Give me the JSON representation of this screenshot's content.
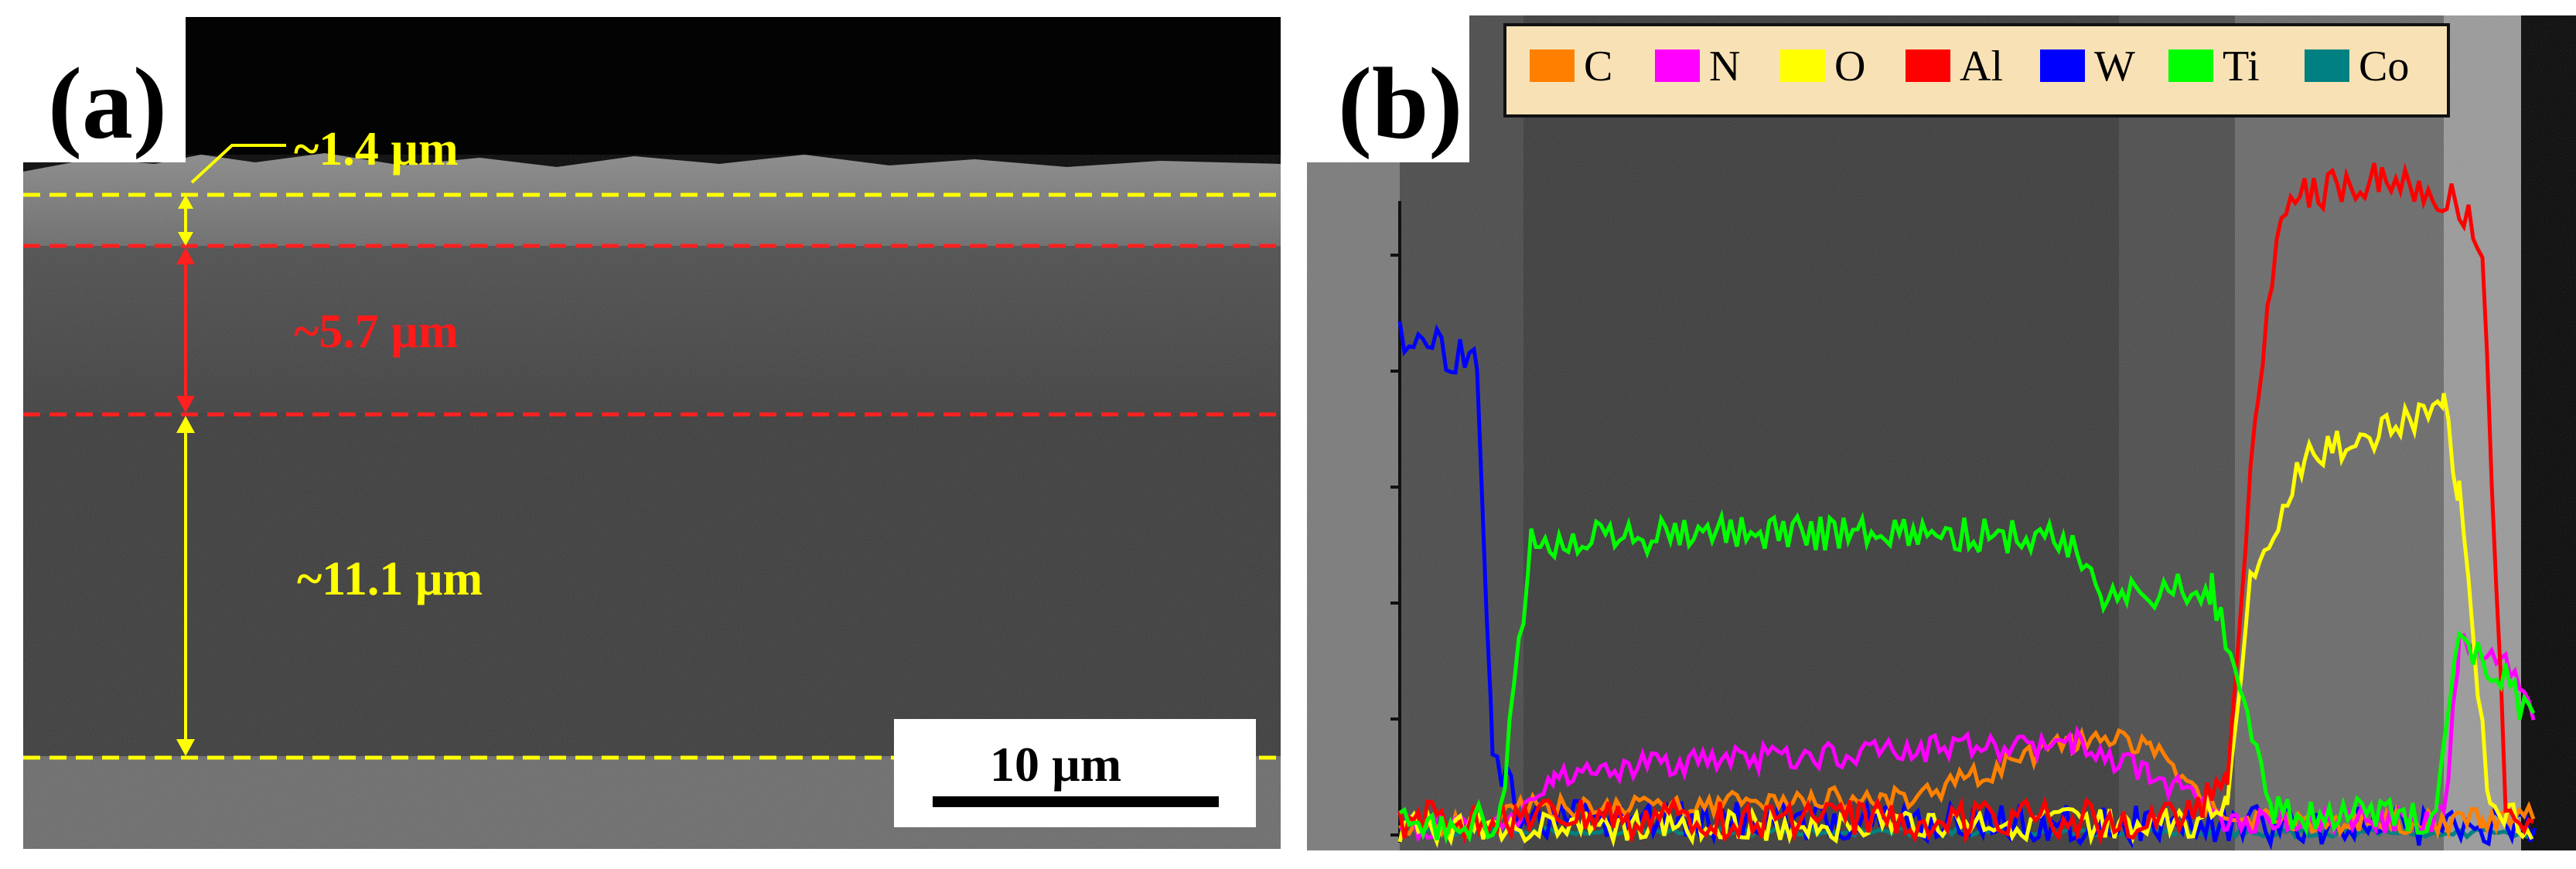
{
  "panel_a": {
    "label": "(a)",
    "layers": [
      {
        "text": "~1.4 µm",
        "color": "#ffff00"
      },
      {
        "text": "~5.7 µm",
        "color": "#ff1a1a"
      },
      {
        "text": "~11.1 µm",
        "color": "#ffff00"
      }
    ],
    "scale_bar": {
      "text": "10 µm"
    }
  },
  "panel_b": {
    "label": "(b)",
    "legend": [
      {
        "label": "C",
        "color": "#ff8000"
      },
      {
        "label": "N",
        "color": "#ff00ff"
      },
      {
        "label": "O",
        "color": "#ffff00"
      },
      {
        "label": "Al",
        "color": "#ff0000"
      },
      {
        "label": "W",
        "color": "#0000ff"
      },
      {
        "label": "Ti",
        "color": "#00ff00"
      },
      {
        "label": "Co",
        "color": "#008080"
      }
    ]
  }
}
